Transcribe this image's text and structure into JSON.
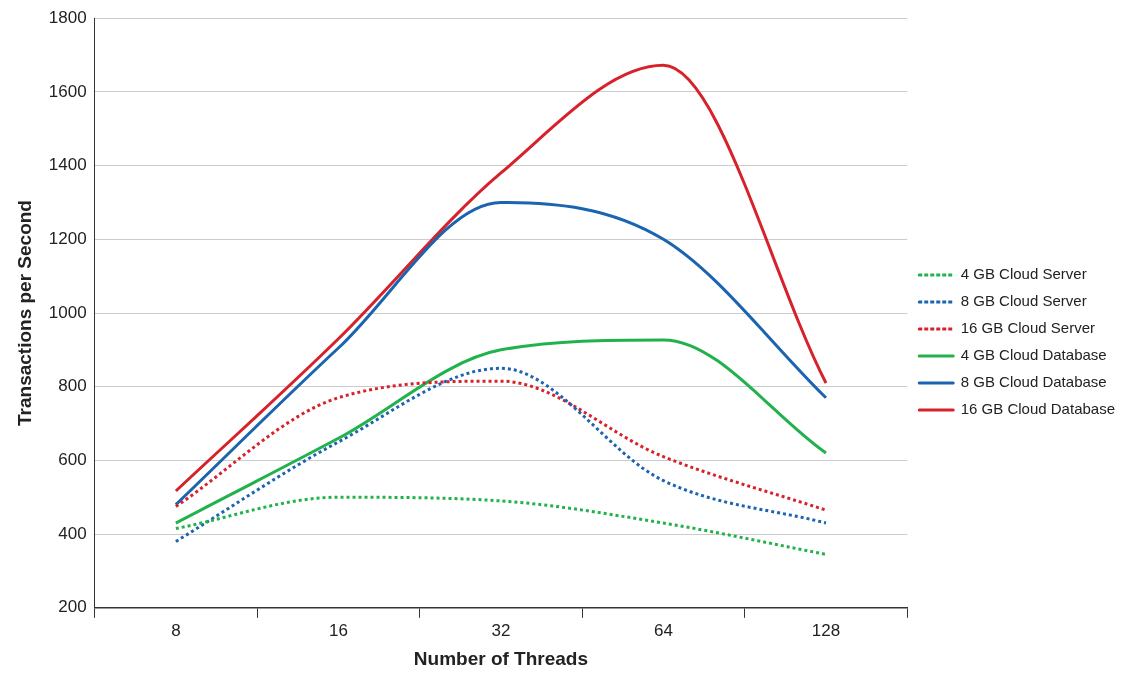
{
  "chart_data": {
    "type": "line",
    "xlabel": "Number of Threads",
    "ylabel": "Transactions per Second",
    "categories": [
      "8",
      "16",
      "32",
      "64",
      "128"
    ],
    "ylim": [
      200,
      1800
    ],
    "yticks": [
      200,
      400,
      600,
      800,
      1000,
      1200,
      1400,
      1600,
      1800
    ],
    "grid": "y",
    "legend": "right",
    "marker": "none",
    "series": [
      {
        "name": "4 GB Cloud Server",
        "color": "#22b24c",
        "line_style": "dotted",
        "values": [
          415,
          500,
          490,
          430,
          345
        ]
      },
      {
        "name": "8 GB Cloud Server",
        "color": "#1a64b0",
        "line_style": "dotted",
        "values": [
          380,
          650,
          850,
          545,
          430
        ]
      },
      {
        "name": "16 GB Cloud Server",
        "color": "#d6222b",
        "line_style": "dotted",
        "values": [
          475,
          770,
          815,
          610,
          465
        ]
      },
      {
        "name": "4 GB Cloud Database",
        "color": "#22b24c",
        "line_style": "solid",
        "values": [
          430,
          660,
          900,
          927,
          620
        ]
      },
      {
        "name": "8 GB Cloud Database",
        "color": "#1a64b0",
        "line_style": "solid",
        "values": [
          480,
          905,
          1300,
          1200,
          770
        ]
      },
      {
        "name": "16 GB Cloud Database",
        "color": "#d6222b",
        "line_style": "solid",
        "values": [
          517,
          930,
          1380,
          1672,
          810
        ]
      }
    ]
  }
}
